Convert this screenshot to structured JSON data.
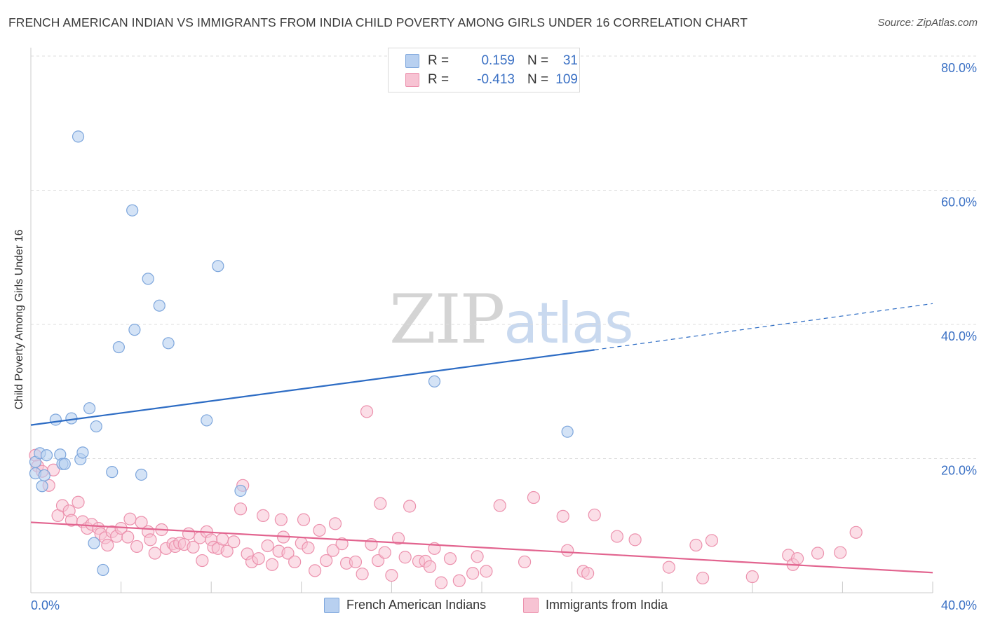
{
  "header": {
    "title": "FRENCH AMERICAN INDIAN VS IMMIGRANTS FROM INDIA CHILD POVERTY AMONG GIRLS UNDER 16 CORRELATION CHART",
    "source": "Source: ZipAtlas.com"
  },
  "watermark": {
    "zip": "ZIP",
    "atlas": "atlas"
  },
  "legend_top": {
    "rows": [
      {
        "r_label": "R =",
        "r_value": "0.159",
        "n_label": "N =",
        "n_value": "31"
      },
      {
        "r_label": "R =",
        "r_value": "-0.413",
        "n_label": "N =",
        "n_value": "109"
      }
    ]
  },
  "legend_bottom": {
    "items": [
      {
        "label": "French American Indians"
      },
      {
        "label": "Immigrants from India"
      }
    ]
  },
  "colors": {
    "blue_fill": "#b8d0f0",
    "blue_stroke": "#7da6dc",
    "blue_line": "#2d6cc4",
    "pink_fill": "#f7c3d3",
    "pink_stroke": "#ec91ad",
    "pink_line": "#e2648f",
    "grid": "#dcdcdc",
    "tick_label": "#3a70c4"
  },
  "chart_data": {
    "type": "scatter",
    "title": "FRENCH AMERICAN INDIAN VS IMMIGRANTS FROM INDIA CHILD POVERTY AMONG GIRLS UNDER 16 CORRELATION CHART",
    "xlabel": "",
    "ylabel": "Child Poverty Among Girls Under 16",
    "xlim": [
      0,
      40
    ],
    "ylim": [
      0,
      80
    ],
    "x_tick_labels": [
      "0.0%",
      "40.0%"
    ],
    "y_ticks": [
      20,
      40,
      60,
      80
    ],
    "y_tick_labels": [
      "20.0%",
      "40.0%",
      "60.0%",
      "80.0%"
    ],
    "grid": true,
    "legend_position": "top-center",
    "series": [
      {
        "name": "French American Indians",
        "r": 0.159,
        "n": 31,
        "trend": {
          "x0": 0,
          "y0": 25.0,
          "x1": 25,
          "y1": 36.2,
          "dashed_to_x": 40,
          "dashed_to_y": 43.1
        },
        "points": [
          [
            0.2,
            19.5
          ],
          [
            0.2,
            17.8
          ],
          [
            0.4,
            20.8
          ],
          [
            0.5,
            15.9
          ],
          [
            0.7,
            20.5
          ],
          [
            1.1,
            25.8
          ],
          [
            1.3,
            20.6
          ],
          [
            1.4,
            19.2
          ],
          [
            1.5,
            19.2
          ],
          [
            1.8,
            26.0
          ],
          [
            2.1,
            68.0
          ],
          [
            2.2,
            19.9
          ],
          [
            2.3,
            20.9
          ],
          [
            2.6,
            27.5
          ],
          [
            2.8,
            7.4
          ],
          [
            2.9,
            24.8
          ],
          [
            3.2,
            3.4
          ],
          [
            3.6,
            18.0
          ],
          [
            3.9,
            36.6
          ],
          [
            4.5,
            57.0
          ],
          [
            4.6,
            39.2
          ],
          [
            4.9,
            17.6
          ],
          [
            5.2,
            46.8
          ],
          [
            5.7,
            42.8
          ],
          [
            6.1,
            37.2
          ],
          [
            7.8,
            25.7
          ],
          [
            8.3,
            48.7
          ],
          [
            9.3,
            15.2
          ],
          [
            17.9,
            31.5
          ],
          [
            23.8,
            24.0
          ],
          [
            0.6,
            17.5
          ]
        ]
      },
      {
        "name": "Immigrants from India",
        "r": -0.413,
        "n": 109,
        "trend": {
          "x0": 0,
          "y0": 10.5,
          "x1": 40,
          "y1": 3.0
        },
        "points": [
          [
            0.2,
            20.5
          ],
          [
            0.3,
            18.9
          ],
          [
            0.5,
            18.1
          ],
          [
            0.8,
            16.0
          ],
          [
            1.0,
            18.3
          ],
          [
            1.2,
            11.5
          ],
          [
            1.4,
            13.0
          ],
          [
            1.7,
            12.2
          ],
          [
            1.8,
            10.8
          ],
          [
            2.1,
            13.5
          ],
          [
            2.3,
            10.6
          ],
          [
            2.5,
            9.6
          ],
          [
            2.7,
            10.2
          ],
          [
            3.0,
            9.6
          ],
          [
            3.1,
            8.8
          ],
          [
            3.3,
            8.2
          ],
          [
            3.4,
            7.1
          ],
          [
            3.6,
            9.1
          ],
          [
            3.8,
            8.4
          ],
          [
            4.0,
            9.6
          ],
          [
            4.3,
            8.3
          ],
          [
            4.4,
            11.0
          ],
          [
            4.7,
            6.9
          ],
          [
            4.9,
            10.5
          ],
          [
            5.2,
            9.1
          ],
          [
            5.3,
            7.9
          ],
          [
            5.5,
            5.9
          ],
          [
            5.8,
            9.4
          ],
          [
            6.0,
            6.6
          ],
          [
            6.3,
            7.3
          ],
          [
            6.4,
            6.9
          ],
          [
            6.6,
            7.4
          ],
          [
            6.8,
            7.2
          ],
          [
            7.0,
            8.8
          ],
          [
            7.2,
            6.8
          ],
          [
            7.5,
            8.2
          ],
          [
            7.6,
            4.8
          ],
          [
            7.8,
            9.1
          ],
          [
            8.0,
            7.9
          ],
          [
            8.1,
            6.8
          ],
          [
            8.3,
            6.6
          ],
          [
            8.5,
            8.0
          ],
          [
            8.7,
            6.2
          ],
          [
            9.0,
            7.6
          ],
          [
            9.3,
            12.5
          ],
          [
            9.4,
            16.0
          ],
          [
            9.6,
            5.8
          ],
          [
            9.8,
            4.6
          ],
          [
            10.1,
            5.1
          ],
          [
            10.3,
            11.5
          ],
          [
            10.5,
            7.0
          ],
          [
            10.7,
            4.2
          ],
          [
            11.0,
            6.2
          ],
          [
            11.1,
            10.9
          ],
          [
            11.2,
            8.3
          ],
          [
            11.4,
            5.9
          ],
          [
            11.7,
            4.6
          ],
          [
            12.0,
            7.4
          ],
          [
            12.1,
            10.9
          ],
          [
            12.3,
            6.7
          ],
          [
            12.6,
            3.3
          ],
          [
            12.8,
            9.3
          ],
          [
            13.1,
            4.8
          ],
          [
            13.4,
            6.3
          ],
          [
            13.5,
            10.3
          ],
          [
            13.8,
            7.3
          ],
          [
            14.0,
            4.4
          ],
          [
            14.4,
            4.6
          ],
          [
            14.7,
            2.8
          ],
          [
            14.9,
            27.0
          ],
          [
            15.1,
            7.2
          ],
          [
            15.4,
            4.8
          ],
          [
            15.5,
            13.3
          ],
          [
            15.7,
            6.0
          ],
          [
            16.0,
            2.6
          ],
          [
            16.3,
            8.1
          ],
          [
            16.6,
            5.3
          ],
          [
            16.8,
            12.9
          ],
          [
            17.2,
            4.7
          ],
          [
            17.5,
            4.7
          ],
          [
            17.7,
            3.9
          ],
          [
            17.9,
            6.6
          ],
          [
            18.2,
            1.5
          ],
          [
            18.6,
            5.1
          ],
          [
            19.0,
            1.8
          ],
          [
            19.6,
            2.9
          ],
          [
            19.8,
            5.4
          ],
          [
            20.2,
            3.2
          ],
          [
            20.8,
            13.0
          ],
          [
            21.9,
            4.6
          ],
          [
            22.3,
            14.2
          ],
          [
            23.6,
            11.4
          ],
          [
            23.8,
            6.3
          ],
          [
            24.5,
            3.2
          ],
          [
            24.7,
            2.9
          ],
          [
            25.0,
            11.6
          ],
          [
            26.0,
            8.4
          ],
          [
            26.8,
            7.9
          ],
          [
            28.3,
            3.8
          ],
          [
            29.5,
            7.1
          ],
          [
            29.8,
            2.2
          ],
          [
            30.2,
            7.8
          ],
          [
            32.0,
            2.4
          ],
          [
            33.6,
            5.6
          ],
          [
            33.8,
            4.2
          ],
          [
            34.0,
            5.1
          ],
          [
            34.9,
            5.9
          ],
          [
            35.9,
            6.0
          ],
          [
            36.6,
            9.0
          ]
        ]
      }
    ]
  }
}
